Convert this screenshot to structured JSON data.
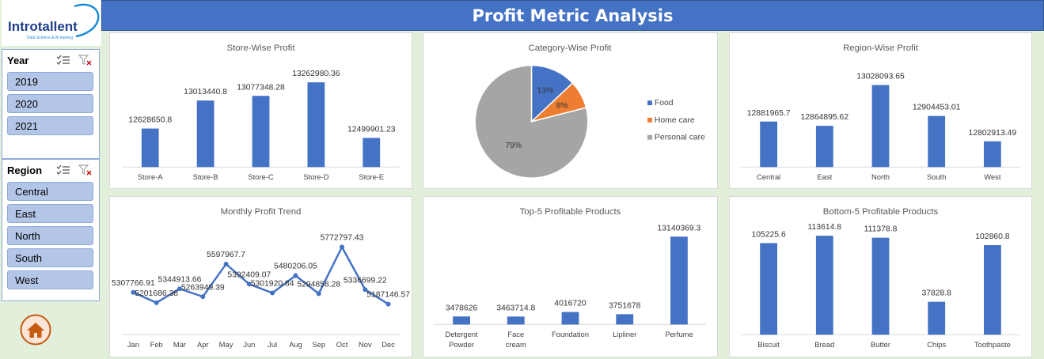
{
  "header": {
    "title": "Profit Metric Analysis"
  },
  "logo": {
    "name": "Introtallent",
    "tagline": "Data Science & AI training",
    "accent": "#1f8bd8",
    "brand_dark": "#1f3f8c"
  },
  "slicers": [
    {
      "title": "Year",
      "items": [
        "2019",
        "2020",
        "2021"
      ]
    },
    {
      "title": "Region",
      "items": [
        "Central",
        "East",
        "North",
        "South",
        "West"
      ]
    }
  ],
  "colors": {
    "bar": "#4472c4",
    "food": "#4472c4",
    "home_care": "#ed7d31",
    "personal_care": "#a5a5a5",
    "title_bar": "#4472c4"
  },
  "home_button": {
    "icon": "home-icon"
  },
  "chart_data": [
    {
      "id": "store",
      "type": "bar",
      "title": "Store-Wise Profit",
      "categories": [
        "Store-A",
        "Store-B",
        "Store-C",
        "Store-D",
        "Store-E"
      ],
      "values": [
        12628650.8,
        13013440.8,
        13077348.28,
        13262980.36,
        12499901.23
      ],
      "value_labels": [
        "12628650.8",
        "13013440.8",
        "13077348.28",
        "13262980.36",
        "12499901.23"
      ],
      "ylim": [
        12100000,
        13400000
      ]
    },
    {
      "id": "category",
      "type": "pie",
      "title": "Category-Wise Profit",
      "categories": [
        "Food",
        "Home care",
        "Personal care"
      ],
      "values": [
        13,
        8,
        79
      ],
      "value_labels": [
        "13%",
        "8%",
        "79%"
      ],
      "legend": "right"
    },
    {
      "id": "region",
      "type": "bar",
      "title": "Region-Wise Profit",
      "categories": [
        "Central",
        "East",
        "North",
        "South",
        "West"
      ],
      "values": [
        12881965.7,
        12864895.62,
        13028093.65,
        12904453.01,
        12802913.49
      ],
      "value_labels": [
        "12881965.7",
        "12864895.62",
        "13028093.65",
        "12904453.01",
        "12802913.49"
      ],
      "ylim": [
        12700000,
        13060000
      ]
    },
    {
      "id": "monthly",
      "type": "line",
      "title": "Monthly Profit Trend",
      "categories": [
        "Jan",
        "Feb",
        "Mar",
        "Apr",
        "May",
        "Jun",
        "Jul",
        "Aug",
        "Sep",
        "Oct",
        "Nov",
        "Dec"
      ],
      "values": [
        5307766.91,
        5201686.38,
        5344913.66,
        5263949.39,
        5597967.7,
        5392409.07,
        5301920.84,
        5480206.05,
        5294858.28,
        5772797.43,
        5336699.22,
        5187146.57
      ],
      "value_labels": [
        "5307766.91",
        "5201686.38",
        "5344913.66",
        "5263949.39",
        "5597967.7",
        "5392409.07",
        "5301920.84",
        "5480206.05",
        "5294858.28",
        "5772797.43",
        "5336699.22",
        "5187146.57"
      ],
      "ylim": [
        4900000,
        5850000
      ]
    },
    {
      "id": "top5",
      "type": "bar",
      "title": "Top-5 Profitable Products",
      "categories": [
        "Detergent Powder",
        "Face cream",
        "Foundation",
        "Lipliner",
        "Perfume"
      ],
      "values": [
        3478626,
        3463714.8,
        4016720,
        3751678,
        13140369.3
      ],
      "value_labels": [
        "3478626",
        "3463714.8",
        "4016720",
        "3751678",
        "13140369.3"
      ],
      "ylim": [
        2500000,
        13400000
      ]
    },
    {
      "id": "bottom5",
      "type": "bar",
      "title": "Bottom-5 Profitable Products",
      "categories": [
        "Biscuit",
        "Bread",
        "Butter",
        "Chips",
        "Toothpaste"
      ],
      "values": [
        105225.6,
        113614.8,
        111378.8,
        37828.8,
        102860.8
      ],
      "value_labels": [
        "105225.6",
        "113614.8",
        "111378.8",
        "37828.8",
        "102860.8"
      ],
      "ylim": [
        0,
        116000
      ]
    }
  ]
}
